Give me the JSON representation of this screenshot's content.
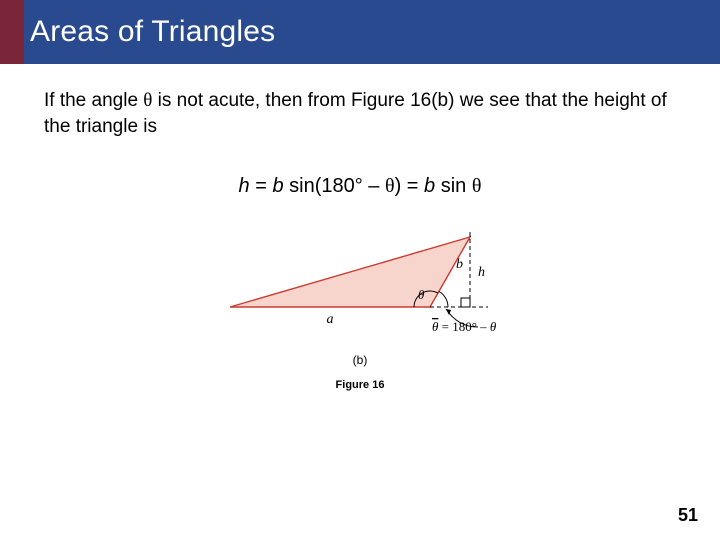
{
  "title": {
    "text": "Areas of Triangles",
    "accent_color": "#7a2638",
    "bar_color": "#2a4a8f",
    "text_color": "#ffffff"
  },
  "paragraph": {
    "pre": "If the angle ",
    "theta1": "θ",
    "mid": " is not acute, then from Figure 16(b) we see that the height of the triangle is"
  },
  "equation": {
    "h": "h",
    "eq1": " = ",
    "b1": "b",
    "sin1": " sin(180",
    "deg": "°",
    "minus": " – ",
    "theta": "θ",
    "close": ") = ",
    "b2": "b",
    "sin2": " sin ",
    "theta2": "θ"
  },
  "figure": {
    "caption_b": "(b)",
    "caption": "Figure 16",
    "triangle": {
      "fill": "#f7d4cc",
      "stroke": "#cc3b2e",
      "vertices": {
        "A": [
          0,
          70
        ],
        "B": [
          200,
          70
        ],
        "C": [
          240,
          0
        ]
      },
      "base_label": "a",
      "side_label": "b",
      "height_label": "h",
      "angle_label": "θ",
      "ext_angle_formula_prefix": "θ",
      "ext_angle_formula_mid": " = 180° – ",
      "ext_angle_formula_theta": "θ",
      "axis_color": "#000000",
      "dash_color": "#000000"
    }
  },
  "page_number": "51"
}
